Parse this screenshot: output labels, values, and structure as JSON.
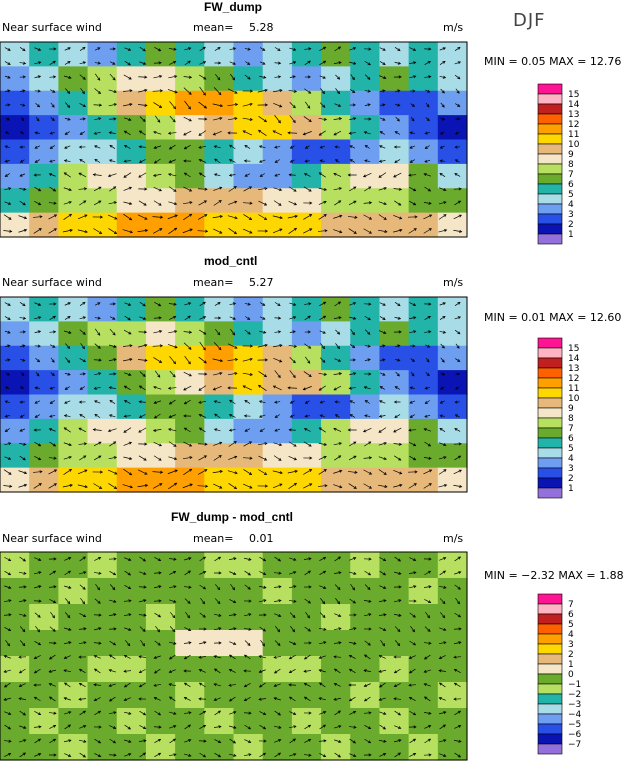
{
  "season": "DJF",
  "palette": {
    "1": "#9370db",
    "2": "#0a14b4",
    "3": "#2850e6",
    "4": "#6e9ef0",
    "5": "#a8dce6",
    "6": "#22b4a8",
    "7": "#6aaa2c",
    "8": "#b8e060",
    "9": "#f5e6c8",
    "10": "#e6b87a",
    "11": "#ffd700",
    "12": "#ffa000",
    "13": "#ff6000",
    "14": "#c02020",
    "15": "#ffb4c4",
    "16": "#ff1493"
  },
  "panels": [
    {
      "title": "FW_dump",
      "variable": "Near surface wind",
      "mean_label": "mean=",
      "mean": "5.28",
      "units": "m/s",
      "minmax": "MIN =   0.05  MAX =  12.76",
      "colorbar_labels": [
        "15",
        "14",
        "13",
        "12",
        "11",
        "10",
        "9",
        "8",
        "7",
        "6",
        "5",
        "4",
        "3",
        "2",
        "1"
      ],
      "colorbar_colors": [
        "#ff1493",
        "#ffb4c4",
        "#c02020",
        "#ff6000",
        "#ffa000",
        "#ffd700",
        "#e6b87a",
        "#f5e6c8",
        "#b8e060",
        "#6aaa2c",
        "#22b4a8",
        "#a8dce6",
        "#6e9ef0",
        "#2850e6",
        "#0a14b4",
        "#9370db"
      ]
    },
    {
      "title": "mod_cntl",
      "variable": "Near surface wind",
      "mean_label": "mean=",
      "mean": "5.27",
      "units": "m/s",
      "minmax": "MIN =   0.01  MAX =  12.60",
      "colorbar_labels": [
        "15",
        "14",
        "13",
        "12",
        "11",
        "10",
        "9",
        "8",
        "7",
        "6",
        "5",
        "4",
        "3",
        "2",
        "1"
      ],
      "colorbar_colors": [
        "#ff1493",
        "#ffb4c4",
        "#c02020",
        "#ff6000",
        "#ffa000",
        "#ffd700",
        "#e6b87a",
        "#f5e6c8",
        "#b8e060",
        "#6aaa2c",
        "#22b4a8",
        "#a8dce6",
        "#6e9ef0",
        "#2850e6",
        "#0a14b4",
        "#9370db"
      ]
    },
    {
      "title": "FW_dump - mod_cntl",
      "variable": "Near surface wind",
      "mean_label": "mean=",
      "mean": "0.01",
      "units": "m/s",
      "minmax": "MIN =  −2.32  MAX =    1.88",
      "colorbar_labels": [
        "7",
        "6",
        "5",
        "4",
        "3",
        "2",
        "1",
        "0",
        "−1",
        "−2",
        "−3",
        "−4",
        "−5",
        "−6",
        "−7"
      ],
      "colorbar_colors": [
        "#ff1493",
        "#ffb4c4",
        "#c02020",
        "#ff6000",
        "#ffa000",
        "#ffd700",
        "#e6b87a",
        "#f5e6c8",
        "#6aaa2c",
        "#b8e060",
        "#22b4a8",
        "#a8dce6",
        "#6e9ef0",
        "#2850e6",
        "#0a14b4",
        "#9370db"
      ]
    }
  ],
  "chart_data": [
    {
      "type": "heatmap",
      "title": "FW_dump",
      "subtitle": "Near surface wind",
      "mean": 5.28,
      "units": "m/s",
      "min": 0.05,
      "max": 12.76,
      "color_levels": [
        1,
        2,
        3,
        4,
        5,
        6,
        7,
        8,
        9,
        10,
        11,
        12,
        13,
        14,
        15
      ],
      "rows": 8,
      "cols": 16,
      "values": [
        [
          5,
          6,
          5,
          4,
          6,
          7,
          6,
          5,
          4,
          5,
          6,
          7,
          6,
          5,
          6,
          5
        ],
        [
          4,
          5,
          7,
          8,
          9,
          9,
          8,
          7,
          6,
          5,
          4,
          5,
          6,
          7,
          6,
          5
        ],
        [
          3,
          4,
          6,
          8,
          10,
          11,
          12,
          12,
          11,
          10,
          8,
          6,
          4,
          3,
          3,
          4
        ],
        [
          2,
          3,
          4,
          6,
          7,
          8,
          9,
          10,
          11,
          11,
          10,
          8,
          6,
          4,
          3,
          2
        ],
        [
          3,
          4,
          5,
          5,
          6,
          7,
          7,
          6,
          5,
          4,
          3,
          3,
          4,
          5,
          4,
          3
        ],
        [
          4,
          6,
          8,
          9,
          9,
          8,
          7,
          5,
          4,
          4,
          6,
          8,
          9,
          9,
          7,
          5
        ],
        [
          6,
          7,
          8,
          8,
          9,
          9,
          10,
          10,
          10,
          9,
          9,
          8,
          8,
          8,
          7,
          7
        ],
        [
          9,
          10,
          11,
          11,
          12,
          12,
          12,
          11,
          11,
          11,
          11,
          10,
          10,
          10,
          10,
          9
        ]
      ]
    },
    {
      "type": "heatmap",
      "title": "mod_cntl",
      "subtitle": "Near surface wind",
      "mean": 5.27,
      "units": "m/s",
      "min": 0.01,
      "max": 12.6,
      "color_levels": [
        1,
        2,
        3,
        4,
        5,
        6,
        7,
        8,
        9,
        10,
        11,
        12,
        13,
        14,
        15
      ],
      "rows": 8,
      "cols": 16,
      "values": [
        [
          5,
          6,
          5,
          4,
          6,
          7,
          6,
          5,
          4,
          5,
          6,
          7,
          6,
          5,
          6,
          5
        ],
        [
          4,
          5,
          7,
          8,
          8,
          9,
          8,
          7,
          6,
          5,
          4,
          5,
          6,
          7,
          6,
          5
        ],
        [
          3,
          4,
          6,
          7,
          10,
          11,
          11,
          12,
          11,
          10,
          8,
          6,
          4,
          3,
          3,
          4
        ],
        [
          2,
          3,
          4,
          6,
          7,
          8,
          9,
          10,
          11,
          10,
          10,
          8,
          6,
          4,
          3,
          2
        ],
        [
          3,
          4,
          5,
          5,
          6,
          7,
          7,
          6,
          5,
          4,
          3,
          3,
          4,
          5,
          4,
          3
        ],
        [
          4,
          6,
          8,
          9,
          9,
          8,
          7,
          5,
          4,
          4,
          6,
          8,
          9,
          9,
          7,
          5
        ],
        [
          6,
          7,
          8,
          8,
          9,
          9,
          10,
          10,
          10,
          9,
          9,
          8,
          8,
          8,
          7,
          7
        ],
        [
          9,
          10,
          11,
          11,
          12,
          12,
          12,
          11,
          11,
          11,
          11,
          10,
          10,
          10,
          10,
          9
        ]
      ]
    },
    {
      "type": "heatmap",
      "title": "FW_dump - mod_cntl",
      "subtitle": "Near surface wind",
      "mean": 0.01,
      "units": "m/s",
      "min": -2.32,
      "max": 1.88,
      "color_levels": [
        -7,
        -6,
        -5,
        -4,
        -3,
        -2,
        -1,
        0,
        1,
        2,
        3,
        4,
        5,
        6,
        7
      ],
      "rows": 8,
      "cols": 16,
      "values": [
        [
          -1,
          0,
          0,
          -1,
          0,
          0,
          0,
          -1,
          -1,
          0,
          0,
          0,
          -1,
          0,
          0,
          -1
        ],
        [
          0,
          0,
          -1,
          0,
          0,
          0,
          0,
          0,
          0,
          -1,
          0,
          0,
          0,
          0,
          -1,
          0
        ],
        [
          0,
          -1,
          0,
          0,
          0,
          -1,
          0,
          0,
          0,
          0,
          0,
          -1,
          0,
          0,
          0,
          0
        ],
        [
          0,
          0,
          0,
          0,
          0,
          0,
          1,
          1,
          1,
          0,
          0,
          0,
          0,
          0,
          0,
          0
        ],
        [
          -1,
          0,
          0,
          -1,
          -1,
          0,
          0,
          0,
          0,
          -1,
          -1,
          0,
          0,
          -1,
          0,
          0
        ],
        [
          0,
          0,
          -1,
          0,
          0,
          0,
          -1,
          0,
          0,
          0,
          0,
          0,
          -1,
          0,
          0,
          -1
        ],
        [
          0,
          -1,
          0,
          0,
          -1,
          0,
          0,
          -1,
          0,
          0,
          -1,
          0,
          0,
          -1,
          0,
          0
        ],
        [
          0,
          0,
          -1,
          0,
          0,
          -1,
          0,
          0,
          -1,
          0,
          0,
          -1,
          0,
          0,
          -1,
          0
        ]
      ]
    }
  ]
}
